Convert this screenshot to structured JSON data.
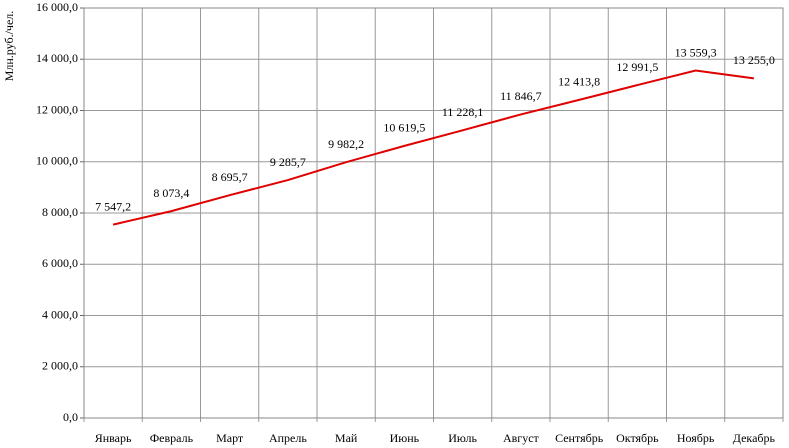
{
  "chart_data": {
    "type": "line",
    "y_label": "Млн.руб./чел.",
    "categories": [
      "Январь",
      "Февраль",
      "Март",
      "Апрель",
      "Май",
      "Июнь",
      "Июль",
      "Август",
      "Сентябрь",
      "Октябрь",
      "Ноябрь",
      "Декабрь"
    ],
    "series": [
      {
        "color": "#e00000",
        "values": [
          7547.2,
          8073.4,
          8695.7,
          9285.7,
          9982.2,
          10619.5,
          11228.1,
          11846.7,
          12413.8,
          12991.5,
          13559.3,
          13255.0
        ],
        "value_labels": [
          "7 547,2",
          "8 073,4",
          "8 695,7",
          "9 285,7",
          "9 982,2",
          "10 619,5",
          "11 228,1",
          "11 846,7",
          "12 413,8",
          "12 991,5",
          "13 559,3",
          "13 255,0"
        ]
      }
    ],
    "ylim": [
      0,
      16000
    ],
    "yticks": [
      {
        "value": 0,
        "label": "0,0"
      },
      {
        "value": 2000,
        "label": "2 000,0"
      },
      {
        "value": 4000,
        "label": "4 000,0"
      },
      {
        "value": 6000,
        "label": "6 000,0"
      },
      {
        "value": 8000,
        "label": "8 000,0"
      },
      {
        "value": 10000,
        "label": "10 000,0"
      },
      {
        "value": 12000,
        "label": "12 000,0"
      },
      {
        "value": 14000,
        "label": "14 000,0"
      },
      {
        "value": 16000,
        "label": "16 000,0"
      }
    ],
    "grid": true
  }
}
